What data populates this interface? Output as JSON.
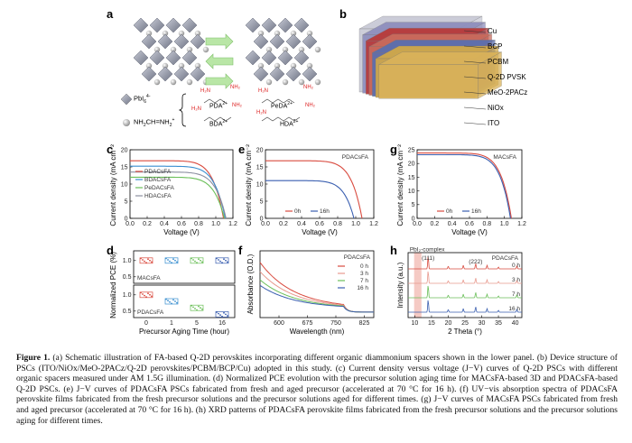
{
  "panel_labels": {
    "a": "a",
    "b": "b",
    "c": "c",
    "d": "d",
    "e": "e",
    "f": "f",
    "g": "g",
    "h": "h"
  },
  "panel_a": {
    "pbi6": "PbI",
    "pbi6_sup": "6",
    "pbi6_charge": "4-",
    "fa": "NH",
    "fa_rest": "CH",
    "fa_tail": "NH",
    "spacers": {
      "pda": "PDA",
      "peda": "PeDA",
      "bda": "BDA",
      "hda": "HDA",
      "charge": "2+",
      "h2n": "H₂N",
      "nh2": "NH₂"
    }
  },
  "panel_b": {
    "layers": [
      "Cu",
      "BCP",
      "PCBM",
      "Q-2D PVSK",
      "MeO-2PACz",
      "NiOx",
      "ITO"
    ],
    "colors": [
      "#d9b25a",
      "#d0a84a",
      "#5a6fb0",
      "#c96b5d",
      "#b83a3a",
      "#8e8ebd",
      "#c9cad6"
    ]
  },
  "chart_data": [
    {
      "id": "c",
      "type": "line",
      "xlabel": "Voltage (V)",
      "ylabel": "Current density (mA cm⁻²)",
      "xlim": [
        0,
        1.2
      ],
      "ylim": [
        0,
        20
      ],
      "xticks": [
        "0.0",
        "0.2",
        "0.4",
        "0.6",
        "0.8",
        "1.0",
        "1.2"
      ],
      "yticks": [
        "0",
        "5",
        "10",
        "15",
        "20"
      ],
      "series": [
        {
          "name": "PDACsFA",
          "color": "#d94b3f",
          "jsc": 16.8,
          "voc": 1.09
        },
        {
          "name": "BDACsFA",
          "color": "#3a8fd0",
          "jsc": 15.2,
          "voc": 1.11
        },
        {
          "name": "PeDACsFA",
          "color": "#6bbf59",
          "jsc": 12.0,
          "voc": 1.1
        },
        {
          "name": "HDACsFA",
          "color": "#8b8fa0",
          "jsc": 13.5,
          "voc": 1.12
        }
      ]
    },
    {
      "id": "e",
      "type": "line",
      "title": "PDACsFA",
      "xlabel": "Voltage (V)",
      "ylabel": "Current density (mA cm⁻²)",
      "xlim": [
        0,
        1.2
      ],
      "ylim": [
        0,
        20
      ],
      "xticks": [
        "0.0",
        "0.2",
        "0.4",
        "0.6",
        "0.8",
        "1.0",
        "1.2"
      ],
      "yticks": [
        "0",
        "5",
        "10",
        "15",
        "20"
      ],
      "series": [
        {
          "name": "0h",
          "color": "#d94b3f",
          "jsc": 16.8,
          "voc": 1.07
        },
        {
          "name": "16h",
          "color": "#3a5fb0",
          "jsc": 11.0,
          "voc": 0.98
        }
      ]
    },
    {
      "id": "g",
      "type": "line",
      "title": "MACsFA",
      "xlabel": "Voltage (V)",
      "ylabel": "Current density (mA cm⁻²)",
      "xlim": [
        0,
        1.2
      ],
      "ylim": [
        0,
        25
      ],
      "xticks": [
        "0.0",
        "0.2",
        "0.4",
        "0.6",
        "0.8",
        "1.0",
        "1.2"
      ],
      "yticks": [
        "0",
        "5",
        "10",
        "15",
        "20",
        "25"
      ],
      "series": [
        {
          "name": "0h",
          "color": "#d94b3f",
          "jsc": 23.8,
          "voc": 1.08
        },
        {
          "name": "16h",
          "color": "#3a5fb0",
          "jsc": 23.2,
          "voc": 1.07
        }
      ]
    },
    {
      "id": "d",
      "type": "scatter",
      "xlabel": "Precursor Aging Time (hour)",
      "ylabel": "Normalized PCE (%)",
      "categories": [
        "0",
        "1",
        "5",
        "16"
      ],
      "subpanels": [
        {
          "label": "MACsFA",
          "values": [
            1.0,
            1.0,
            1.0,
            1.0
          ],
          "colors": [
            "#d94b3f",
            "#3a8fd0",
            "#6bbf59",
            "#3a5fb0"
          ]
        },
        {
          "label": "PDACsFA",
          "values": [
            1.0,
            0.8,
            0.6,
            0.4
          ],
          "colors": [
            "#d94b3f",
            "#3a8fd0",
            "#6bbf59",
            "#3a5fb0"
          ]
        }
      ],
      "yticks": [
        "0.5",
        "1.0"
      ]
    },
    {
      "id": "f",
      "type": "line",
      "title": "PDACsFA",
      "xlabel": "Wavelength (nm)",
      "ylabel": "Absorbance (O.D.)",
      "xlim": [
        550,
        850
      ],
      "xticks": [
        "600",
        "675",
        "750",
        "825"
      ],
      "series": [
        {
          "name": "0 h",
          "color": "#d94b3f"
        },
        {
          "name": "3 h",
          "color": "#e89a8f"
        },
        {
          "name": "7 h",
          "color": "#6bbf59"
        },
        {
          "name": "16 h",
          "color": "#3a5fb0"
        }
      ]
    },
    {
      "id": "h",
      "type": "line",
      "title": "PDACsFA",
      "xlabel": "2 Theta (°)",
      "ylabel": "Intensity (a.u.)",
      "xlim": [
        8,
        42
      ],
      "xticks": [
        "10",
        "15",
        "20",
        "25",
        "30",
        "35",
        "40"
      ],
      "annotations": [
        "PbI₂-complex",
        "(111)",
        "(222)"
      ],
      "series": [
        {
          "name": "0 h",
          "color": "#d94b3f"
        },
        {
          "name": "3 h",
          "color": "#e89a8f"
        },
        {
          "name": "7 h",
          "color": "#6bbf59"
        },
        {
          "name": "16 h",
          "color": "#3a5fb0"
        }
      ]
    }
  ],
  "caption": {
    "lead": "Figure 1.",
    "text": " (a) Schematic illustration of FA-based Q-2D perovskites incorporating different organic diammonium spacers shown in the lower panel. (b) Device structure of PSCs (ITO/NiOx/MeO-2PACz/Q-2D perovskites/PCBM/BCP/Cu) adopted in this study. (c) Current density versus voltage (J−V) curves of Q-2D PSCs with different organic spacers measured under AM 1.5G illumination. (d) Normalized PCE evolution with the precursor solution aging time for MACsFA-based 3D and PDACsFA-based Q-2D PSCs. (e) J−V curves of PDACsFA PSCs fabricated from fresh and aged precursor (accelerated at 70 °C for 16 h). (f) UV−vis absorption spectra of PDACsFA perovskite films fabricated from the fresh precursor solutions and the precursor solutions aged for different times. (g) J−V curves of MACsFA PSCs fabricated from fresh and aged precursor (accelerated at 70 °C for 16 h). (h) XRD patterns of PDACsFA perovskite films fabricated from the fresh precursor solutions and the precursor solutions aging for different times."
  }
}
